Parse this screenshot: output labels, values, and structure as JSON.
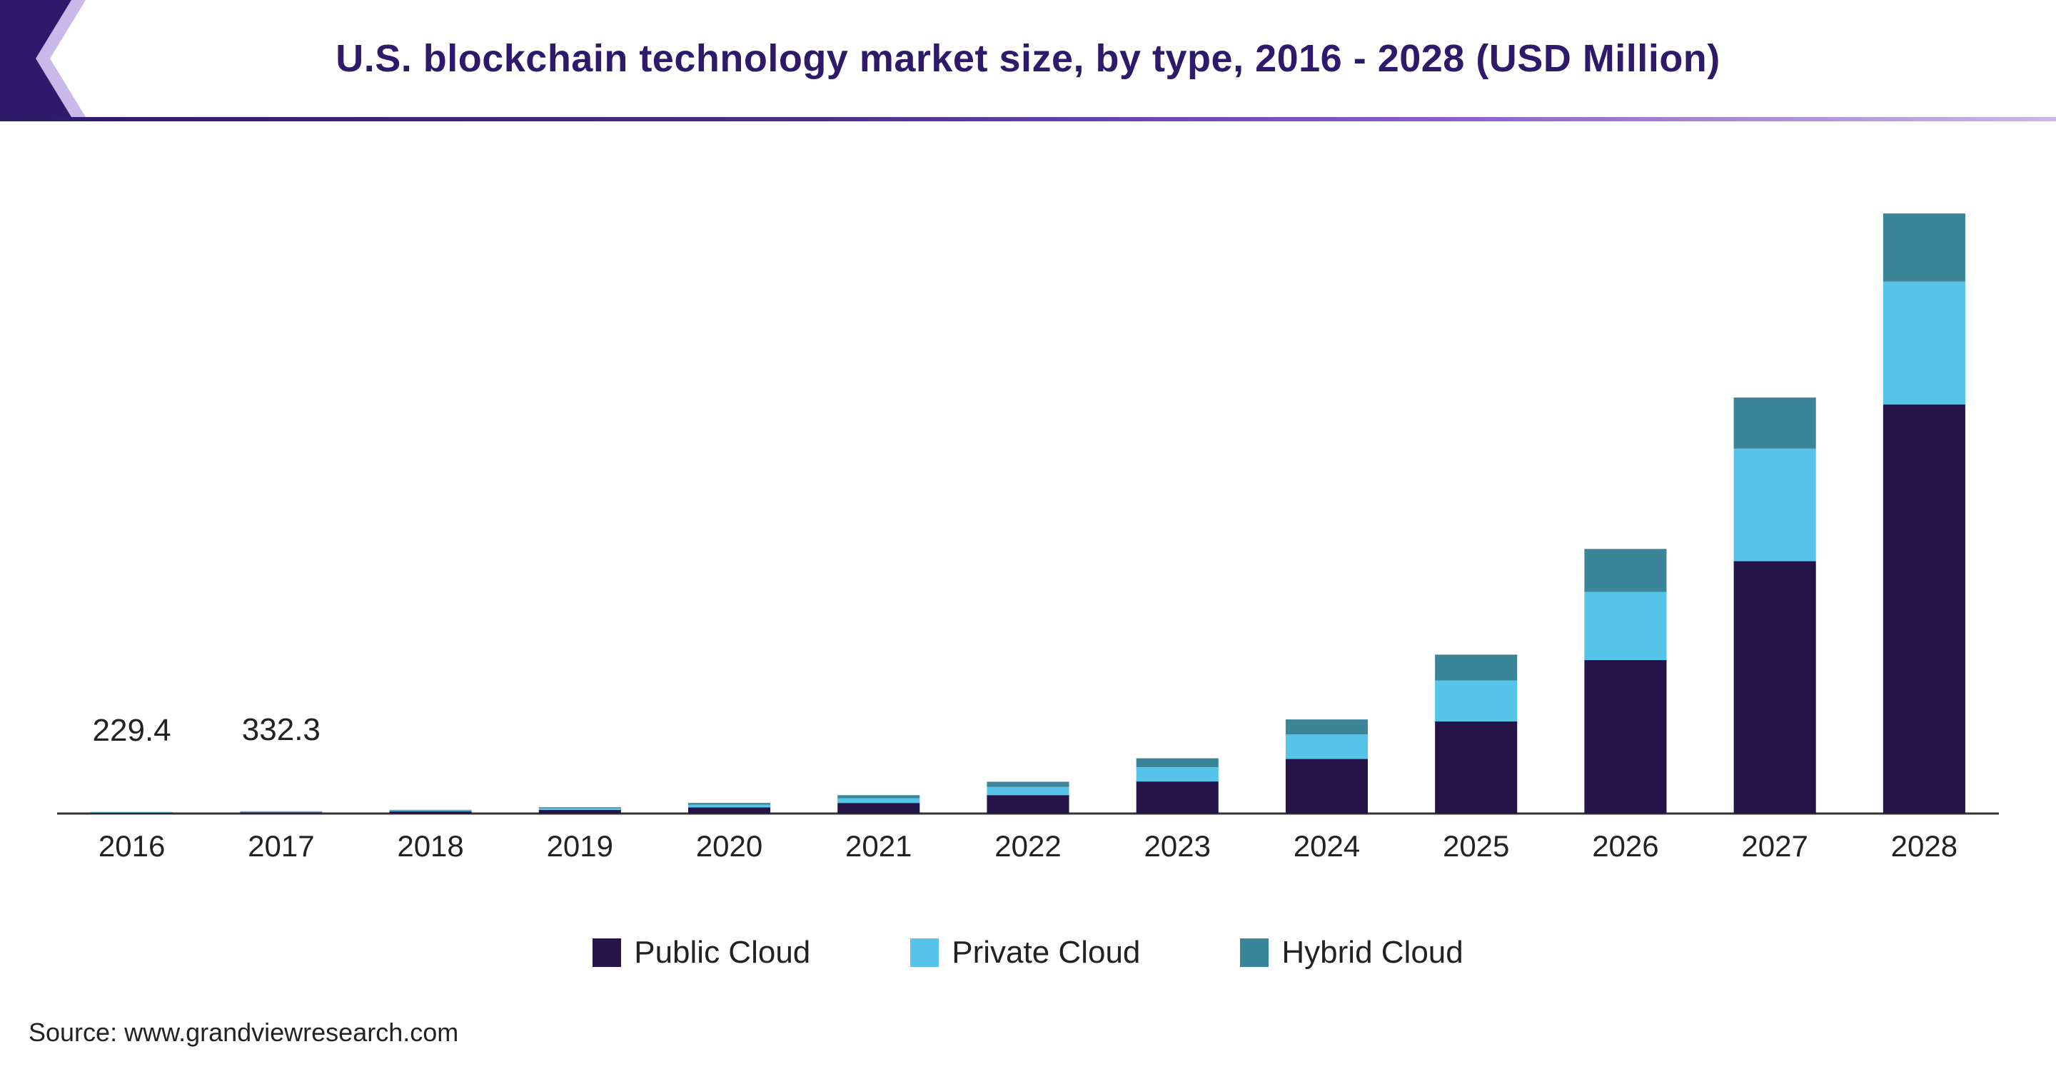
{
  "title": "U.S. blockchain technology market size, by type, 2016 - 2028 (USD Million)",
  "title_color": "#2d1a6b",
  "title_fontsize": 54,
  "source_text": "Source: www.grandviewresearch.com",
  "source_fontsize": 36,
  "source_color": "#222222",
  "chevron_fill": "#2d1a6b",
  "chevron_light": "#c9b8e8",
  "underline_gradient": [
    "#2d1a6b",
    "#4a2e8c",
    "#8a5ec9",
    "#c9b8e8"
  ],
  "chart": {
    "type": "stacked-bar",
    "background_color": "#ffffff",
    "axis_color": "#333333",
    "axis_width": 3,
    "tick_fontsize": 42,
    "datalabel_fontsize": 44,
    "datalabel_color": "#222222",
    "bar_width_ratio": 0.55,
    "ymax": 90000,
    "ymin": 0,
    "categories": [
      "2016",
      "2017",
      "2018",
      "2019",
      "2020",
      "2021",
      "2022",
      "2023",
      "2024",
      "2025",
      "2026",
      "2027",
      "2028"
    ],
    "series": [
      {
        "name": "Public Cloud",
        "color": "#241447",
        "values": [
          130,
          190,
          310,
          530,
          900,
          1550,
          2700,
          4700,
          8000,
          13500,
          22500,
          37000,
          60000
        ]
      },
      {
        "name": "Private Cloud",
        "color": "#55c4e8",
        "values": [
          60,
          90,
          140,
          240,
          400,
          700,
          1200,
          2100,
          3600,
          6000,
          10000,
          16500,
          18000
        ]
      },
      {
        "name": "Hybrid Cloud",
        "color": "#3a8597",
        "values": [
          40,
          52,
          90,
          150,
          250,
          440,
          760,
          1300,
          2200,
          3800,
          6300,
          7500,
          10000
        ]
      }
    ],
    "data_labels": [
      {
        "category_index": 0,
        "text": "229.4"
      },
      {
        "category_index": 1,
        "text": "332.3"
      }
    ]
  },
  "legend": {
    "items": [
      {
        "label": "Public Cloud",
        "color": "#241447"
      },
      {
        "label": "Private Cloud",
        "color": "#55c4e8"
      },
      {
        "label": "Hybrid Cloud",
        "color": "#3a8597"
      }
    ],
    "fontsize": 44,
    "text_color": "#222222"
  }
}
